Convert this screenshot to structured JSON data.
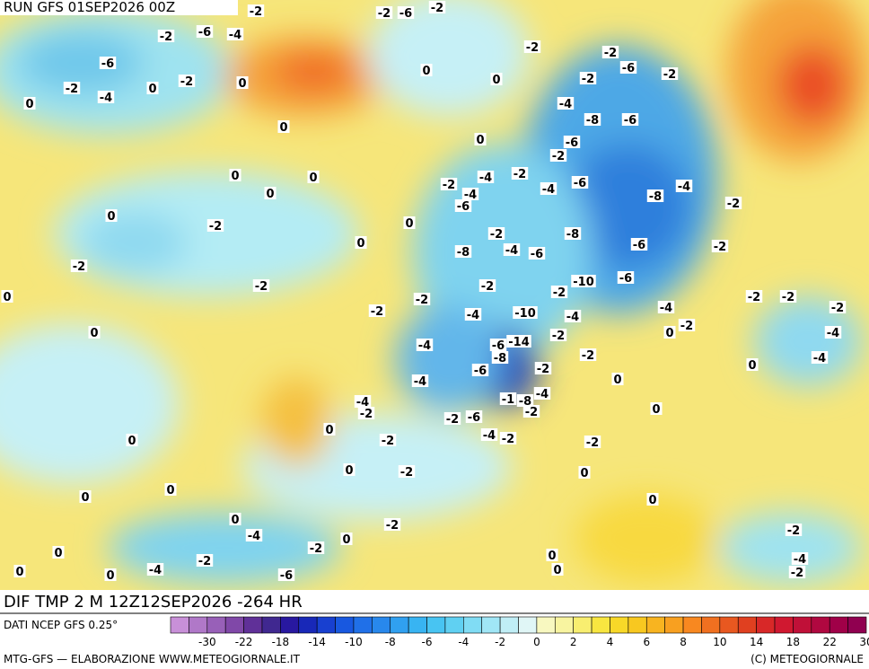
{
  "header": {
    "run": "RUN GFS 01SEP2026 00Z"
  },
  "footer": {
    "field": "DIF TMP 2 M 12Z12SEP2026 -264 HR",
    "source": "DATI NCEP GFS 0.25°",
    "credit": "MTG-GFS — ELABORAZIONE WWW.METEOGIORNALE.IT",
    "copyright": "(C) METEOGIORNALE"
  },
  "legend": {
    "ticks": [
      "-30",
      "-22",
      "-18",
      "-14",
      "-10",
      "-8",
      "-6",
      "-4",
      "-2",
      "0",
      "2",
      "4",
      "6",
      "8",
      "10",
      "14",
      "18",
      "22",
      "30"
    ]
  },
  "map": {
    "labels": [
      "-2",
      "-2",
      "-6",
      "-2",
      "-2",
      "-6",
      "-4",
      "-6",
      "-2",
      "-4",
      "0",
      "-2",
      "0",
      "0",
      "0",
      "0",
      "-2",
      "-2",
      "-6",
      "-2",
      "-2",
      "-4",
      "-8",
      "-6",
      "-6",
      "0",
      "0",
      "-2",
      "0",
      "0",
      "0",
      "-2",
      "-4",
      "-2",
      "-4",
      "-6",
      "-4",
      "-6",
      "-8",
      "-4",
      "-2",
      "0",
      "-2",
      "0",
      "-2",
      "-8",
      "-6",
      "-2",
      "0",
      "-8",
      "-4",
      "-6",
      "-2",
      "-2",
      "-10",
      "-6",
      "-2",
      "-2",
      "0",
      "-2",
      "-2",
      "-2",
      "-2",
      "-2",
      "-4",
      "-10",
      "-4",
      "-4",
      "-2",
      "0",
      "0",
      "-4",
      "-4",
      "-6",
      "-14",
      "-2",
      "-8",
      "-2",
      "-4",
      "0",
      "-6",
      "-2",
      "-4",
      "0",
      "-1",
      "-8",
      "-4",
      "-4",
      "-2",
      "-2",
      "0",
      "-2",
      "-6",
      "0",
      "-4",
      "-2",
      "-2",
      "-2",
      "0",
      "-2",
      "0",
      "0",
      "0",
      "0",
      "0",
      "-2",
      "-4",
      "0",
      "0",
      "-2",
      "-2",
      "-2",
      "-4",
      "-6",
      "0",
      "0",
      "0",
      "0",
      "0",
      "-4",
      "-2"
    ]
  }
}
